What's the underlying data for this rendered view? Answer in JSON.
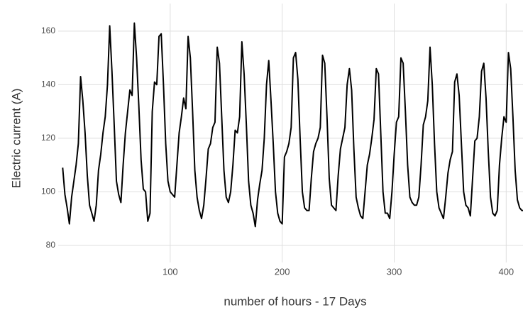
{
  "chart_data": {
    "type": "line",
    "x_label": "number of hours - 17 Days",
    "y_label": "Electric current (A)",
    "xlim": [
      0,
      415
    ],
    "ylim": [
      73.6,
      170.3
    ],
    "xticks": [
      100,
      200,
      300,
      400
    ],
    "yticks": [
      80,
      100,
      120,
      140,
      160
    ],
    "grid": true,
    "x": [
      4,
      6,
      8,
      10,
      12,
      14,
      16,
      18,
      20,
      22,
      24,
      26,
      28,
      30,
      32,
      34,
      36,
      38,
      40,
      42,
      44,
      46,
      48,
      50,
      52,
      54,
      56,
      58,
      60,
      62,
      64,
      66,
      68,
      70,
      72,
      74,
      76,
      78,
      80,
      82,
      84,
      86,
      88,
      90,
      92,
      94,
      96,
      98,
      100,
      102,
      104,
      106,
      108,
      110,
      112,
      114,
      116,
      118,
      120,
      122,
      124,
      126,
      128,
      130,
      132,
      134,
      136,
      138,
      140,
      142,
      144,
      146,
      148,
      150,
      152,
      154,
      156,
      158,
      160,
      162,
      164,
      166,
      168,
      170,
      172,
      174,
      176,
      178,
      180,
      182,
      184,
      186,
      188,
      190,
      192,
      194,
      196,
      198,
      200,
      202,
      204,
      206,
      208,
      210,
      212,
      214,
      216,
      218,
      220,
      222,
      224,
      226,
      228,
      230,
      232,
      234,
      236,
      238,
      240,
      242,
      244,
      246,
      248,
      250,
      252,
      254,
      256,
      258,
      260,
      262,
      264,
      266,
      268,
      270,
      272,
      274,
      276,
      278,
      280,
      282,
      284,
      286,
      288,
      290,
      292,
      294,
      296,
      298,
      300,
      302,
      304,
      306,
      308,
      310,
      312,
      314,
      316,
      318,
      320,
      322,
      324,
      326,
      328,
      330,
      332,
      334,
      336,
      338,
      340,
      342,
      344,
      346,
      348,
      350,
      352,
      354,
      356,
      358,
      360,
      362,
      364,
      366,
      368,
      370,
      372,
      374,
      376,
      378,
      380,
      382,
      384,
      386,
      388,
      390,
      392,
      394,
      396,
      398,
      400,
      402,
      404,
      406,
      408,
      410,
      412,
      414,
      416
    ],
    "series": [
      {
        "color": "#000000",
        "values": [
          109,
          99,
          94,
          88,
          98,
          104,
          110,
          118,
          143,
          134,
          122,
          106,
          95,
          92,
          89,
          95,
          108,
          114,
          122,
          128,
          140,
          162,
          145,
          125,
          104,
          99,
          96,
          110,
          122,
          130,
          138,
          136,
          163,
          150,
          132,
          112,
          101,
          100,
          89,
          92,
          130,
          141,
          140,
          158,
          159,
          140,
          118,
          104,
          100,
          99,
          98,
          110,
          122,
          128,
          135,
          131,
          158,
          150,
          130,
          108,
          98,
          93,
          90,
          95,
          105,
          116,
          118,
          124,
          126,
          154,
          148,
          128,
          108,
          98,
          96,
          100,
          110,
          123,
          122,
          128,
          156,
          144,
          125,
          104,
          95,
          92,
          87,
          97,
          103,
          108,
          120,
          140,
          149,
          134,
          118,
          100,
          92,
          89,
          88,
          113,
          115,
          118,
          124,
          150,
          152,
          142,
          120,
          100,
          94,
          93,
          93,
          105,
          115,
          118,
          120,
          124,
          151,
          148,
          128,
          105,
          95,
          94,
          93,
          106,
          116,
          120,
          124,
          140,
          146,
          138,
          116,
          98,
          94,
          91,
          90,
          100,
          110,
          114,
          120,
          127,
          146,
          144,
          122,
          100,
          92,
          92,
          90,
          100,
          114,
          126,
          128,
          150,
          148,
          130,
          110,
          98,
          96,
          95,
          95,
          98,
          110,
          125,
          128,
          134,
          154,
          140,
          118,
          100,
          94,
          92,
          90,
          98,
          107,
          112,
          115,
          141,
          144,
          136,
          118,
          100,
          95,
          94,
          91,
          105,
          119,
          120,
          128,
          145,
          148,
          135,
          115,
          98,
          92,
          91,
          93,
          110,
          120,
          128,
          126,
          152,
          146,
          128,
          108,
          97,
          94,
          93,
          93
        ]
      }
    ]
  }
}
